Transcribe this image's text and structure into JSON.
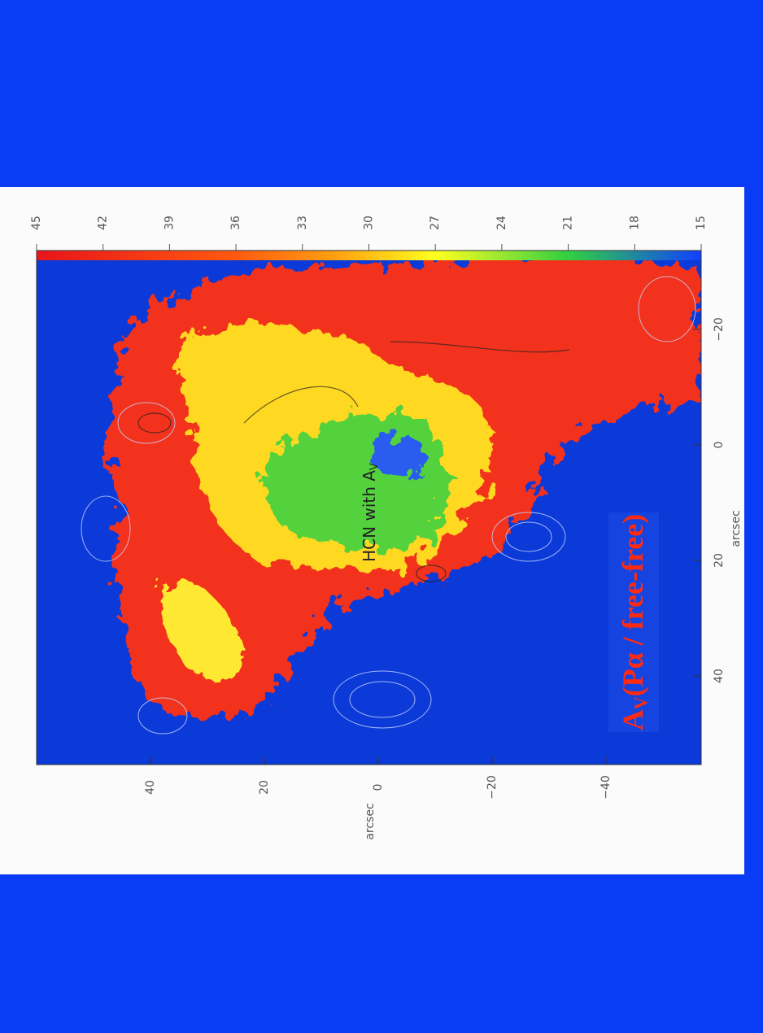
{
  "figure": {
    "title": {
      "text": "HCN with A",
      "sub": "V"
    },
    "colorbar": {
      "ticks": [
        "45",
        "42",
        "39",
        "36",
        "33",
        "30",
        "27",
        "24",
        "21",
        "18",
        "15"
      ]
    },
    "side_axis": {
      "label": "arcsec",
      "ticks": [
        "40",
        "20",
        "0",
        "−20",
        "−40"
      ]
    },
    "end_axis": {
      "label": "arcsec",
      "ticks": [
        "−20",
        "0",
        "20",
        "40"
      ]
    },
    "annotation": {
      "main": "A",
      "sub": "V",
      "rest": "(Pα / free-free)"
    }
  }
}
